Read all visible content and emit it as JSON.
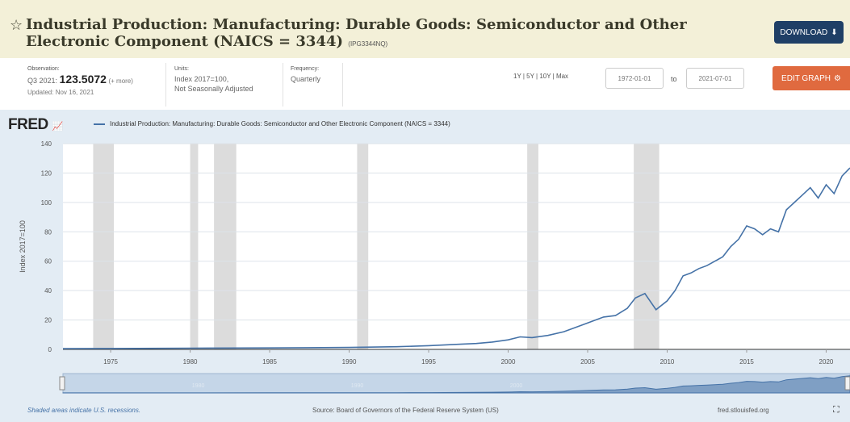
{
  "header": {
    "title": "Industrial Production: Manufacturing: Durable Goods: Semiconductor and Other Electronic Component (NAICS = 3344)",
    "series_id": "(IPG3344NQ)",
    "download_label": "DOWNLOAD"
  },
  "meta": {
    "observation_label": "Observation:",
    "observation_period": "Q3 2021:",
    "observation_value": "123.5072",
    "observation_more": "(+ more)",
    "updated": "Updated: Nov 16, 2021",
    "units_label": "Units:",
    "units_line1": "Index 2017=100,",
    "units_line2": "Not Seasonally Adjusted",
    "frequency_label": "Frequency:",
    "frequency_value": "Quarterly",
    "ranges": "1Y | 5Y | 10Y | Max",
    "date_from": "1972-01-01",
    "to_label": "to",
    "date_to": "2021-07-01",
    "edit_label": "EDIT GRAPH"
  },
  "chart": {
    "logo": "FRED",
    "legend": "Industrial Production: Manufacturing: Durable Goods: Semiconductor and Other Electronic Component (NAICS = 3344)",
    "footer_left": "Shaded areas indicate U.S. recessions.",
    "footer_source": "Source: Board of Governors of the Federal Reserve System (US)",
    "footer_right": "fred.stlouisfed.org"
  },
  "colors": {
    "line": "#4572a7",
    "recession": "#dcdcdc",
    "plot_bg": "#ffffff",
    "chart_bg": "#e3ecf4",
    "header_bg": "#f3f0d8",
    "download_btn": "#1f3f66",
    "edit_btn": "#e06a3f"
  },
  "chart_data": {
    "type": "line",
    "ylabel": "Index 2017=100",
    "xlim": [
      1972.0,
      2021.5
    ],
    "ylim": [
      0,
      140
    ],
    "y_ticks": [
      0,
      20,
      40,
      60,
      80,
      100,
      120,
      140
    ],
    "x_ticks": [
      1975,
      1980,
      1985,
      1990,
      1995,
      2000,
      2005,
      2010,
      2015,
      2020
    ],
    "recessions": [
      [
        1973.9,
        1975.2
      ],
      [
        1980.0,
        1980.5
      ],
      [
        1981.5,
        1982.9
      ],
      [
        1990.5,
        1991.2
      ],
      [
        2001.2,
        2001.9
      ],
      [
        2007.9,
        2009.5
      ]
    ],
    "navigator_labels": [
      "1980",
      "1990",
      "2000"
    ],
    "series": [
      {
        "name": "Industrial Production: Manufacturing: Durable Goods: Semiconductor and Other Electronic Component (NAICS = 3344)",
        "x": [
          1972,
          1975,
          1980,
          1985,
          1990,
          1993,
          1995,
          1997,
          1998,
          1999,
          2000,
          2000.75,
          2001.5,
          2002.5,
          2003.5,
          2004.5,
          2005,
          2006,
          2006.75,
          2007.5,
          2008,
          2008.6,
          2009.3,
          2010,
          2010.5,
          2011,
          2011.5,
          2012,
          2012.5,
          2013,
          2013.5,
          2014,
          2014.5,
          2015,
          2015.5,
          2016,
          2016.5,
          2017,
          2017.5,
          2018,
          2018.5,
          2019,
          2019.5,
          2020,
          2020.5,
          2021,
          2021.5
        ],
        "values": [
          0.5,
          0.6,
          0.8,
          1.0,
          1.3,
          1.8,
          2.5,
          3.5,
          4.0,
          5.0,
          6.5,
          8.5,
          8.0,
          9.5,
          12.0,
          16.0,
          18.0,
          22.0,
          23.0,
          28.0,
          35.0,
          38.0,
          27.0,
          33.0,
          40.0,
          50.0,
          52.0,
          55.0,
          57.0,
          60.0,
          63.0,
          70.0,
          75.0,
          84.0,
          82.0,
          78.0,
          82.0,
          80.0,
          95.0,
          100.0,
          105.0,
          110.0,
          103.0,
          112.0,
          106.0,
          118.0,
          123.5
        ]
      }
    ]
  }
}
